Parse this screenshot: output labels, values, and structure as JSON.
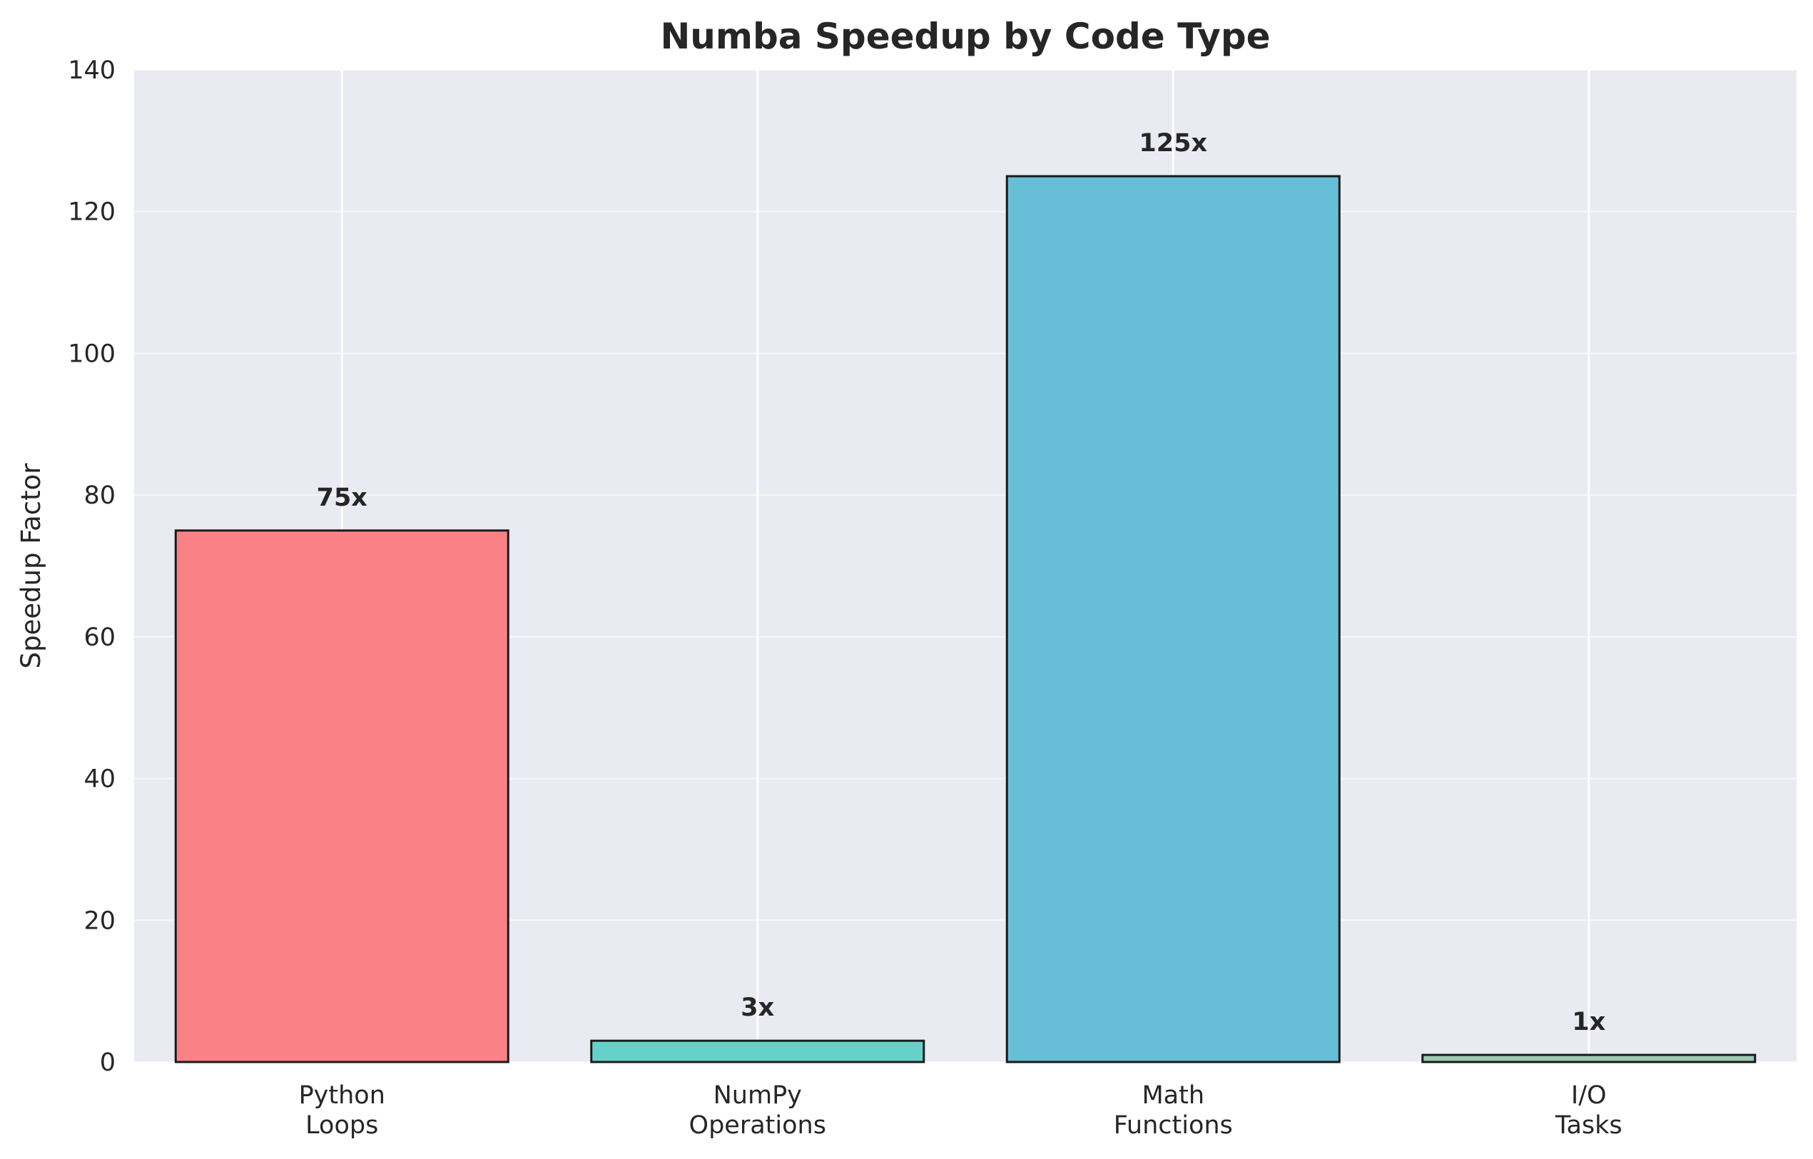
{
  "chart_data": {
    "type": "bar",
    "title": "Numba Speedup by Code Type",
    "xlabel": "",
    "ylabel": "Speedup Factor",
    "categories": [
      "Python\nLoops",
      "NumPy\nOperations",
      "Math\nFunctions",
      "I/O\nTasks"
    ],
    "values": [
      75,
      3,
      125,
      1
    ],
    "value_labels": [
      "75x",
      "3x",
      "125x",
      "1x"
    ],
    "bar_colors": [
      "#fa8286",
      "#66d1c8",
      "#66bfd6",
      "#9ccbb3"
    ],
    "ylim": [
      0,
      140
    ],
    "yticks": [
      0,
      20,
      40,
      60,
      80,
      100,
      120,
      140
    ],
    "grid": true,
    "legend": "none"
  },
  "style": {
    "plot_background": "#eaeaf2",
    "grid_color": "#ffffff",
    "bar_edge_color": "#1a1a1a",
    "text_color": "#262626"
  }
}
